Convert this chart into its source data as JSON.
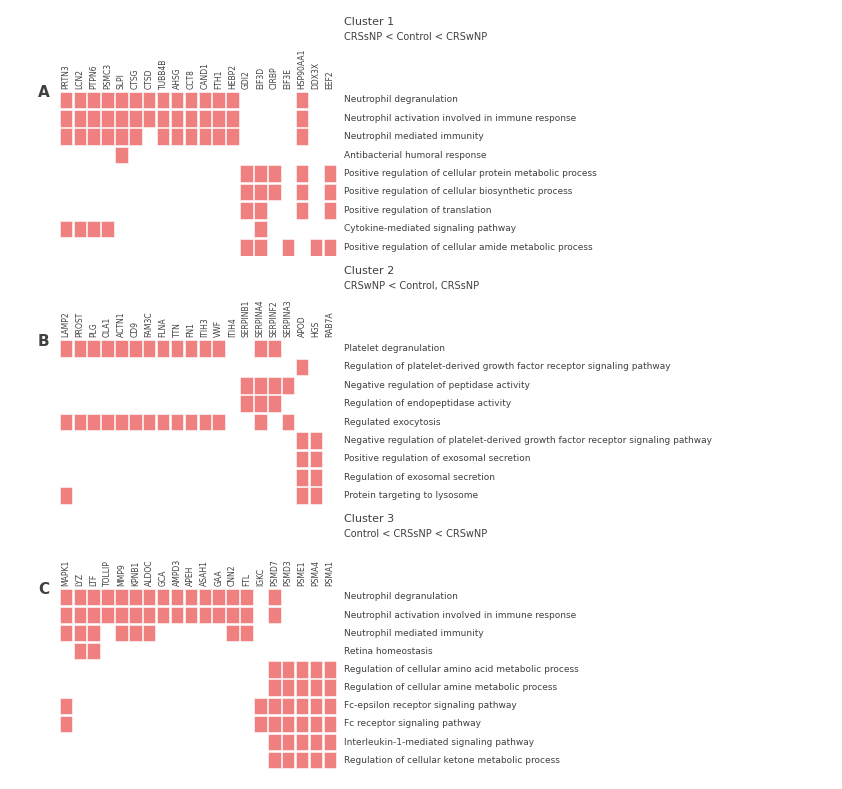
{
  "panel_A": {
    "label": "A",
    "cluster_title": "Cluster 1",
    "cluster_subtitle": "CRSsNP < Control < CRSwNP",
    "proteins": [
      "PRTN3",
      "LCN2",
      "PTPN6",
      "PSMC3",
      "SLPI",
      "CTSG",
      "CTSD",
      "TUBB4B",
      "AHSG",
      "CCT8",
      "CAND1",
      "FTH1",
      "HEBP2",
      "GDI2",
      "EIF3D",
      "CIRBP",
      "EIF3E",
      "HSP90AA1",
      "DDX3X",
      "EEF2"
    ],
    "pathways": [
      "Neutrophil degranulation",
      "Neutrophil activation involved in immune response",
      "Neutrophil mediated immunity",
      "Antibacterial humoral response",
      "Positive regulation of cellular protein metabolic process",
      "Positive regulation of cellular biosynthetic process",
      "Positive regulation of translation",
      "Cytokine-mediated signaling pathway",
      "Positive regulation of cellular amide metabolic process"
    ],
    "matrix": [
      [
        1,
        1,
        1,
        1,
        1,
        1,
        1,
        1,
        1,
        1,
        1,
        1,
        1,
        0,
        0,
        0,
        0,
        1,
        0,
        0
      ],
      [
        1,
        1,
        1,
        1,
        1,
        1,
        1,
        1,
        1,
        1,
        1,
        1,
        1,
        0,
        0,
        0,
        0,
        1,
        0,
        0
      ],
      [
        1,
        1,
        1,
        1,
        1,
        1,
        0,
        1,
        1,
        1,
        1,
        1,
        1,
        0,
        0,
        0,
        0,
        1,
        0,
        0
      ],
      [
        0,
        0,
        0,
        0,
        1,
        0,
        0,
        0,
        0,
        0,
        0,
        0,
        0,
        0,
        0,
        0,
        0,
        0,
        0,
        0
      ],
      [
        0,
        0,
        0,
        0,
        0,
        0,
        0,
        0,
        0,
        0,
        0,
        0,
        0,
        1,
        1,
        1,
        0,
        1,
        0,
        1
      ],
      [
        0,
        0,
        0,
        0,
        0,
        0,
        0,
        0,
        0,
        0,
        0,
        0,
        0,
        1,
        1,
        1,
        0,
        1,
        0,
        1
      ],
      [
        0,
        0,
        0,
        0,
        0,
        0,
        0,
        0,
        0,
        0,
        0,
        0,
        0,
        1,
        1,
        0,
        0,
        1,
        0,
        1
      ],
      [
        1,
        1,
        1,
        1,
        0,
        0,
        0,
        0,
        0,
        0,
        0,
        0,
        0,
        0,
        1,
        0,
        0,
        0,
        0,
        0
      ],
      [
        0,
        0,
        0,
        0,
        0,
        0,
        0,
        0,
        0,
        0,
        0,
        0,
        0,
        1,
        1,
        0,
        1,
        0,
        1,
        1
      ]
    ]
  },
  "panel_B": {
    "label": "B",
    "cluster_title": "Cluster 2",
    "cluster_subtitle": "CRSwNP < Control, CRSsNP",
    "proteins": [
      "LAMP2",
      "PROST",
      "PLG",
      "OLA1",
      "ACTN1",
      "CD9",
      "FAM3C",
      "FLNA",
      "TTN",
      "FN1",
      "ITIH3",
      "VWF",
      "ITIH4",
      "SERPINB1",
      "SERPINA4",
      "SERPINF2",
      "SERPINA3",
      "APOD",
      "HGS",
      "RAB7A"
    ],
    "pathways": [
      "Platelet degranulation",
      "Regulation of platelet-derived growth factor receptor signaling pathway",
      "Negative regulation of peptidase activity",
      "Regulation of endopeptidase activity",
      "Regulated exocytosis",
      "Negative regulation of platelet-derived growth factor receptor signaling pathway",
      "Positive regulation of exosomal secretion",
      "Regulation of exosomal secretion",
      "Protein targeting to lysosome"
    ],
    "matrix": [
      [
        1,
        1,
        1,
        1,
        1,
        1,
        1,
        1,
        1,
        1,
        1,
        1,
        0,
        0,
        1,
        1,
        0,
        0,
        0,
        0
      ],
      [
        0,
        0,
        0,
        0,
        0,
        0,
        0,
        0,
        0,
        0,
        0,
        0,
        0,
        0,
        0,
        0,
        0,
        1,
        0,
        0
      ],
      [
        0,
        0,
        0,
        0,
        0,
        0,
        0,
        0,
        0,
        0,
        0,
        0,
        0,
        1,
        1,
        1,
        1,
        0,
        0,
        0
      ],
      [
        0,
        0,
        0,
        0,
        0,
        0,
        0,
        0,
        0,
        0,
        0,
        0,
        0,
        1,
        1,
        1,
        0,
        0,
        0,
        0
      ],
      [
        1,
        1,
        1,
        1,
        1,
        1,
        1,
        1,
        1,
        1,
        1,
        1,
        0,
        0,
        1,
        0,
        1,
        0,
        0,
        0
      ],
      [
        0,
        0,
        0,
        0,
        0,
        0,
        0,
        0,
        0,
        0,
        0,
        0,
        0,
        0,
        0,
        0,
        0,
        1,
        1,
        0
      ],
      [
        0,
        0,
        0,
        0,
        0,
        0,
        0,
        0,
        0,
        0,
        0,
        0,
        0,
        0,
        0,
        0,
        0,
        1,
        1,
        0
      ],
      [
        0,
        0,
        0,
        0,
        0,
        0,
        0,
        0,
        0,
        0,
        0,
        0,
        0,
        0,
        0,
        0,
        0,
        1,
        1,
        0
      ],
      [
        1,
        0,
        0,
        0,
        0,
        0,
        0,
        0,
        0,
        0,
        0,
        0,
        0,
        0,
        0,
        0,
        0,
        1,
        1,
        0
      ]
    ]
  },
  "panel_C": {
    "label": "C",
    "cluster_title": "Cluster 3",
    "cluster_subtitle": "Control < CRSsNP < CRSwNP",
    "proteins": [
      "MAPK1",
      "LYZ",
      "LTF",
      "TOLLIP",
      "MMP9",
      "KPNB1",
      "ALDOC",
      "GCA",
      "AMPD3",
      "APEH",
      "ASAH1",
      "GAA",
      "CNN2",
      "FTL",
      "IGKC",
      "PSMD7",
      "PSMD3",
      "PSME1",
      "PSMA4",
      "PSMA1"
    ],
    "pathways": [
      "Neutrophil degranulation",
      "Neutrophil activation involved in immune response",
      "Neutrophil mediated immunity",
      "Retina homeostasis",
      "Regulation of cellular amino acid metabolic process",
      "Regulation of cellular amine metabolic process",
      "Fc-epsilon receptor signaling pathway",
      "Fc receptor signaling pathway",
      "Interleukin-1-mediated signaling pathway",
      "Regulation of cellular ketone metabolic process"
    ],
    "matrix": [
      [
        1,
        1,
        1,
        1,
        1,
        1,
        1,
        1,
        1,
        1,
        1,
        1,
        1,
        1,
        0,
        1,
        0,
        0,
        0,
        0
      ],
      [
        1,
        1,
        1,
        1,
        1,
        1,
        1,
        1,
        1,
        1,
        1,
        1,
        1,
        1,
        0,
        1,
        0,
        0,
        0,
        0
      ],
      [
        1,
        1,
        1,
        0,
        1,
        1,
        1,
        0,
        0,
        0,
        0,
        0,
        1,
        1,
        0,
        0,
        0,
        0,
        0,
        0
      ],
      [
        0,
        1,
        1,
        0,
        0,
        0,
        0,
        0,
        0,
        0,
        0,
        0,
        0,
        0,
        0,
        0,
        0,
        0,
        0,
        0
      ],
      [
        0,
        0,
        0,
        0,
        0,
        0,
        0,
        0,
        0,
        0,
        0,
        0,
        0,
        0,
        0,
        1,
        1,
        1,
        1,
        1
      ],
      [
        0,
        0,
        0,
        0,
        0,
        0,
        0,
        0,
        0,
        0,
        0,
        0,
        0,
        0,
        0,
        1,
        1,
        1,
        1,
        1
      ],
      [
        1,
        0,
        0,
        0,
        0,
        0,
        0,
        0,
        0,
        0,
        0,
        0,
        0,
        0,
        1,
        1,
        1,
        1,
        1,
        1
      ],
      [
        1,
        0,
        0,
        0,
        0,
        0,
        0,
        0,
        0,
        0,
        0,
        0,
        0,
        0,
        1,
        1,
        1,
        1,
        1,
        1
      ],
      [
        0,
        0,
        0,
        0,
        0,
        0,
        0,
        0,
        0,
        0,
        0,
        0,
        0,
        0,
        0,
        1,
        1,
        1,
        1,
        1
      ],
      [
        0,
        0,
        0,
        0,
        0,
        0,
        0,
        0,
        0,
        0,
        0,
        0,
        0,
        0,
        0,
        1,
        1,
        1,
        1,
        1
      ]
    ]
  },
  "cell_color": "#F08080",
  "bg_color": "#FFFFFF",
  "text_color": "#404040",
  "protein_fontsize": 5.5,
  "pathway_fontsize": 6.5,
  "title_fontsize": 8,
  "subtitle_fontsize": 7,
  "panel_label_fontsize": 11
}
